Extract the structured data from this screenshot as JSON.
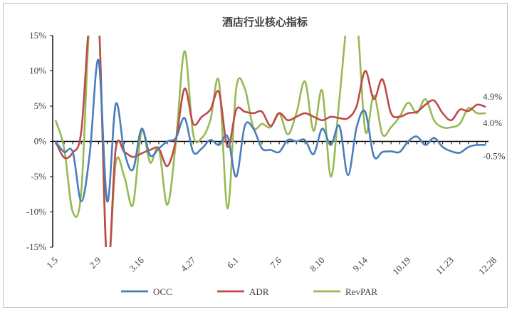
{
  "chart_data": {
    "type": "line",
    "title": "酒店行业核心指标",
    "xlabel": "",
    "ylabel": "",
    "ylim": [
      -15,
      15
    ],
    "yticks": [
      15,
      10,
      5,
      0,
      -5,
      -10,
      -15
    ],
    "ytick_labels": [
      "15%",
      "10%",
      "5%",
      "0%",
      "-5%",
      "-10%",
      "-15%"
    ],
    "xtick_labels": [
      "1.5",
      "2.9",
      "3.16",
      "4.27",
      "6.1",
      "7.6",
      "8.10",
      "9.14",
      "10.19",
      "11.23",
      "12.28"
    ],
    "xtick_positions": [
      0,
      5,
      10,
      16,
      21,
      26,
      31,
      36,
      41,
      46,
      51
    ],
    "grid": false,
    "legend": "bottom",
    "colors": {
      "OCC": "#4a7ebb",
      "ADR": "#be4b48",
      "RevPAR": "#98b954"
    },
    "end_labels": [
      {
        "series": "ADR",
        "text": "4.9%"
      },
      {
        "series": "RevPAR",
        "text": "4.0%"
      },
      {
        "series": "OCC",
        "text": "-0.5%"
      }
    ],
    "series": [
      {
        "name": "OCC",
        "values": [
          0,
          -1.5,
          -1.5,
          -8.5,
          -1.5,
          11.5,
          -8.5,
          5.3,
          -1.5,
          -4,
          1.8,
          -2,
          -1,
          0,
          0.5,
          3.3,
          -1.5,
          -1,
          0.2,
          -0.5,
          0.7,
          -5,
          2.2,
          1.8,
          -1,
          -1.2,
          -1.5,
          0.2,
          0,
          0.2,
          -1.8,
          1.8,
          -0.5,
          2.2,
          -4.8,
          2,
          4.2,
          -2.1,
          -1.5,
          -1.4,
          -1.5,
          0,
          0.7,
          -0.5,
          0.5,
          -0.8,
          -1.4,
          -1.6,
          -0.8,
          -0.5,
          -0.5
        ]
      },
      {
        "name": "ADR",
        "values": [
          0,
          -2.3,
          -1.6,
          1.5,
          15,
          15,
          -15,
          -1,
          -1.5,
          -2.2,
          -1.7,
          -1.2,
          -1,
          -3.5,
          0.2,
          7.5,
          2.5,
          3.5,
          4.5,
          7,
          -0.8,
          4.5,
          4.2,
          4,
          4.2,
          2.2,
          4,
          3,
          3.5,
          4,
          3.5,
          3,
          3.5,
          3.3,
          3.3,
          5,
          10,
          6,
          8.8,
          4,
          3.5,
          4,
          4.2,
          5.2,
          5.8,
          4,
          3,
          4.5,
          4.3,
          5.2,
          4.9
        ]
      },
      {
        "name": "RevPAR",
        "values": [
          3,
          -1,
          -10,
          -7,
          15,
          15,
          -15,
          -3,
          -5,
          -9,
          1.5,
          -3,
          -1,
          -9,
          0,
          12.8,
          1,
          0.5,
          3,
          8.5,
          -9.5,
          7.5,
          7.5,
          2,
          2.5,
          2,
          4,
          1,
          4,
          8.5,
          1.5,
          7.2,
          -5,
          6,
          15,
          15,
          1.5,
          6.5,
          1,
          2,
          3.5,
          5.5,
          4,
          6,
          3,
          2,
          2,
          2.5,
          4.7,
          4,
          4
        ]
      }
    ]
  }
}
